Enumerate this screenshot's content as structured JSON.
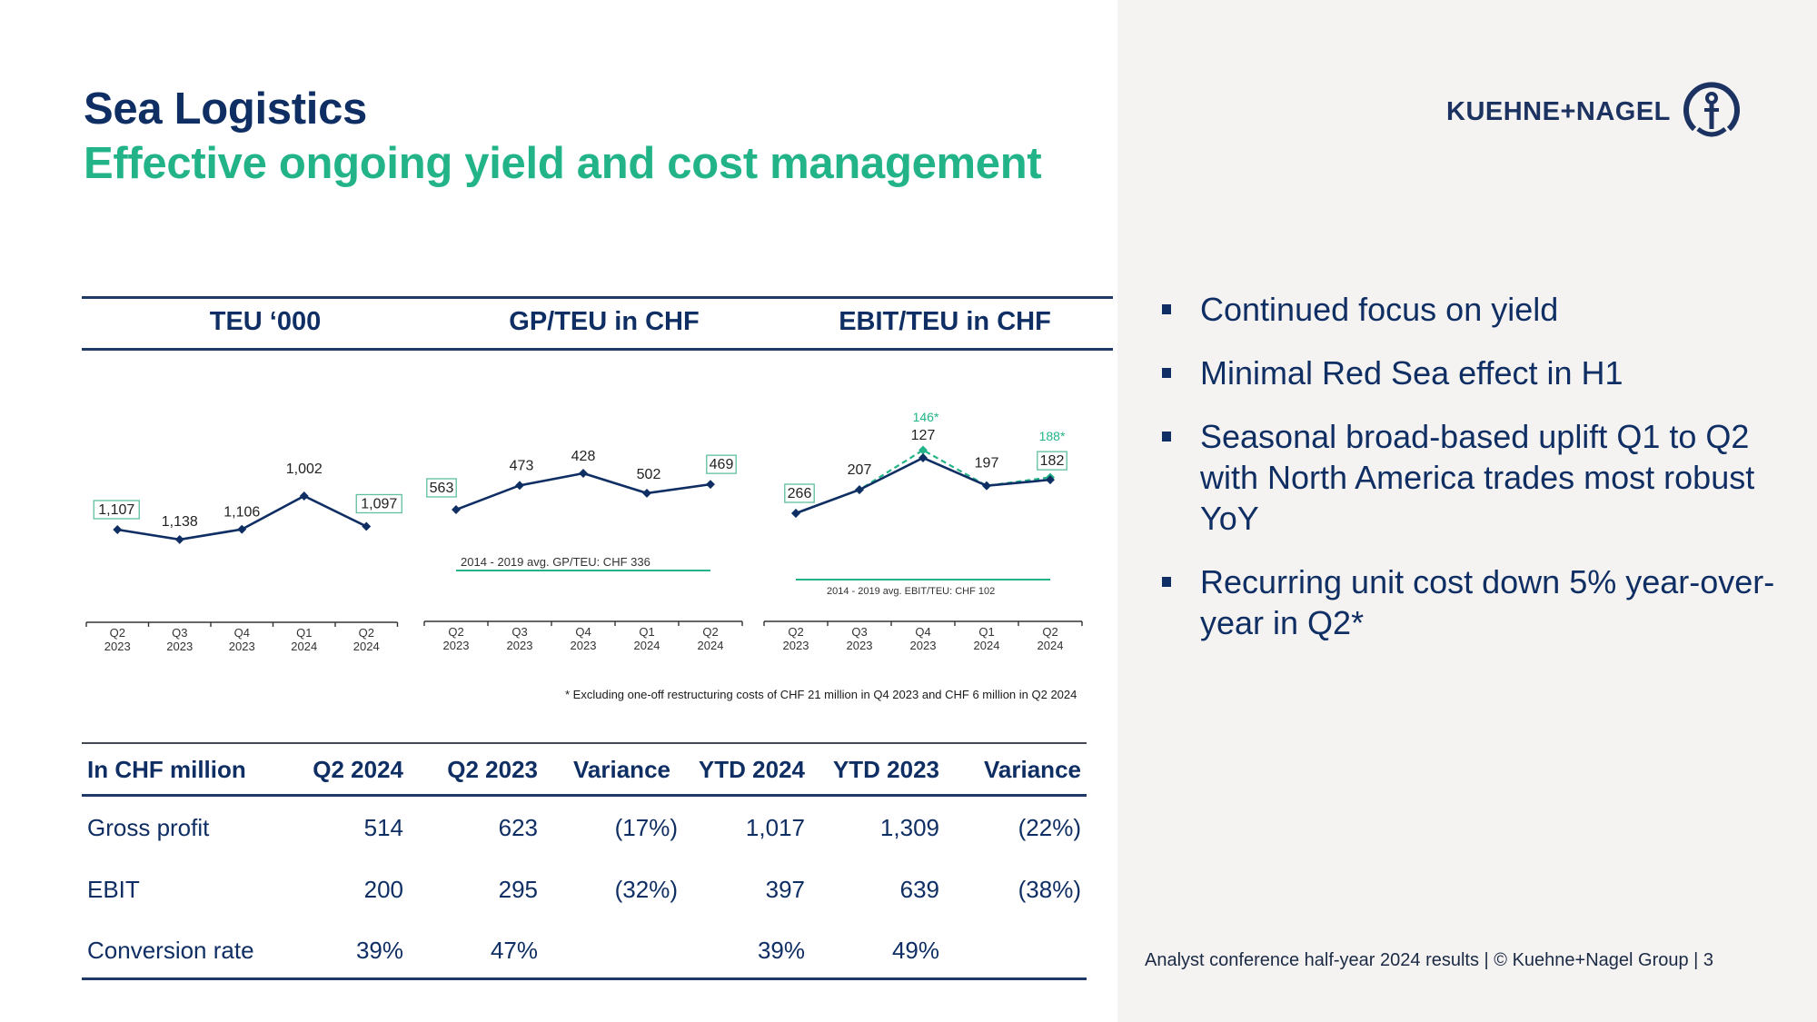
{
  "header": {
    "title": "Sea Logistics",
    "subtitle": "Effective ongoing yield and cost management",
    "logo_text": "KUEHNE+NAGEL",
    "logo_icon": "anchor-circle-icon"
  },
  "colors": {
    "navy": "#0f2e63",
    "green": "#22b488",
    "panel": "#f5f3f1"
  },
  "chart_headers": [
    "TEU ‘000",
    "GP/TEU in CHF",
    "EBIT/TEU in CHF"
  ],
  "chart_data": [
    {
      "type": "line",
      "title": "TEU ‘000",
      "categories": [
        [
          "Q2",
          "2023"
        ],
        [
          "Q3",
          "2023"
        ],
        [
          "Q4",
          "2023"
        ],
        [
          "Q1",
          "2024"
        ],
        [
          "Q2",
          "2024"
        ]
      ],
      "series": [
        {
          "name": "TEU",
          "values": [
            1107,
            1138,
            1106,
            1002,
            1097
          ],
          "labels": [
            "1,107",
            "1,138",
            "1,106",
            "1,002",
            "1,097"
          ],
          "boxed": [
            true,
            false,
            false,
            false,
            true
          ]
        }
      ],
      "ylim": [
        800,
        1250
      ]
    },
    {
      "type": "line",
      "title": "GP/TEU in CHF",
      "categories": [
        [
          "Q2",
          "2023"
        ],
        [
          "Q3",
          "2023"
        ],
        [
          "Q4",
          "2023"
        ],
        [
          "Q1",
          "2024"
        ],
        [
          "Q2",
          "2024"
        ]
      ],
      "series": [
        {
          "name": "GP/TEU",
          "values": [
            563,
            473,
            428,
            502,
            469
          ],
          "labels": [
            "563",
            "473",
            "428",
            "502",
            "469"
          ],
          "boxed": [
            true,
            false,
            false,
            false,
            true
          ]
        }
      ],
      "reference_line": {
        "value": 336,
        "label": "2014 - 2019 avg. GP/TEU: CHF 336"
      },
      "ylim": [
        150,
        650
      ]
    },
    {
      "type": "line",
      "title": "EBIT/TEU in CHF",
      "categories": [
        [
          "Q2",
          "2023"
        ],
        [
          "Q3",
          "2023"
        ],
        [
          "Q4",
          "2023"
        ],
        [
          "Q1",
          "2024"
        ],
        [
          "Q2",
          "2024"
        ]
      ],
      "series": [
        {
          "name": "EBIT/TEU",
          "values": [
            266,
            207,
            127,
            197,
            182
          ],
          "labels": [
            "266",
            "207",
            "127",
            "197",
            "182"
          ],
          "boxed": [
            true,
            false,
            false,
            false,
            true
          ]
        },
        {
          "name": "EBIT/TEU excl. one-off",
          "style": "dashed",
          "values": [
            266,
            207,
            146,
            197,
            188
          ],
          "labels": [
            "",
            "",
            "146*",
            "",
            "188*"
          ]
        }
      ],
      "reference_line": {
        "value": 102,
        "label": "2014 - 2019 avg. EBIT/TEU: CHF 102"
      },
      "ylim": [
        0,
        330
      ]
    }
  ],
  "footnote": "* Excluding one-off restructuring costs of CHF 21 million in Q4 2023 and CHF 6 million in Q2 2024",
  "table": {
    "headers": [
      "In CHF million",
      "Q2 2024",
      "Q2 2023",
      "Variance",
      "YTD 2024",
      "YTD 2023",
      "Variance"
    ],
    "rows": [
      [
        "Gross profit",
        "514",
        "623",
        "(17%)",
        "1,017",
        "1,309",
        "(22%)"
      ],
      [
        "EBIT",
        "200",
        "295",
        "(32%)",
        "397",
        "639",
        "(38%)"
      ],
      [
        "Conversion rate",
        "39%",
        "47%",
        "",
        "39%",
        "49%",
        ""
      ]
    ]
  },
  "bullets": [
    "Continued focus on yield",
    "Minimal Red Sea effect in H1",
    "Seasonal broad-based uplift Q1 to Q2 with North America trades most robust YoY",
    "Recurring unit cost down 5% year-over-year in Q2*"
  ],
  "footer": "Analyst conference half-year 2024 results | © Kuehne+Nagel Group | 3"
}
